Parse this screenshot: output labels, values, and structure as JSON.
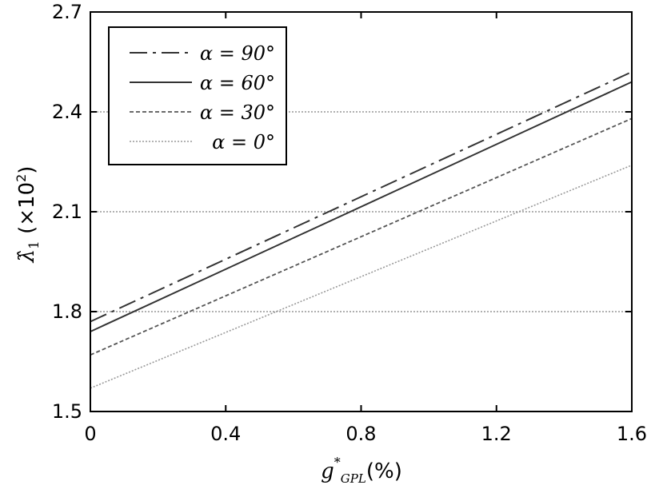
{
  "chart_data": {
    "type": "line",
    "title": "",
    "xlabel": "g*GPL(%)",
    "ylabel": "λ̂1 (×10²)",
    "xlim": [
      0,
      1.6
    ],
    "ylim": [
      1.5,
      2.7
    ],
    "x_ticks": [
      "0",
      "0.4",
      "0.8",
      "1.2",
      "1.6"
    ],
    "y_ticks": [
      "1.5",
      "1.8",
      "2.1",
      "2.4",
      "2.7"
    ],
    "grid": "horizontal dotted",
    "legend_position": "top-left",
    "series": [
      {
        "name": "α = 90°",
        "style": "dash-dot",
        "color": "#333333",
        "x": [
          0,
          1.6
        ],
        "y": [
          1.77,
          2.52
        ]
      },
      {
        "name": "α = 60°",
        "style": "solid",
        "color": "#333333",
        "x": [
          0,
          1.6
        ],
        "y": [
          1.74,
          2.49
        ]
      },
      {
        "name": "α = 30°",
        "style": "dashed",
        "color": "#555555",
        "x": [
          0,
          1.6
        ],
        "y": [
          1.67,
          2.38
        ]
      },
      {
        "name": "α = 0°",
        "style": "dotted",
        "color": "#999999",
        "x": [
          0,
          1.6
        ],
        "y": [
          1.57,
          2.24
        ]
      }
    ]
  }
}
